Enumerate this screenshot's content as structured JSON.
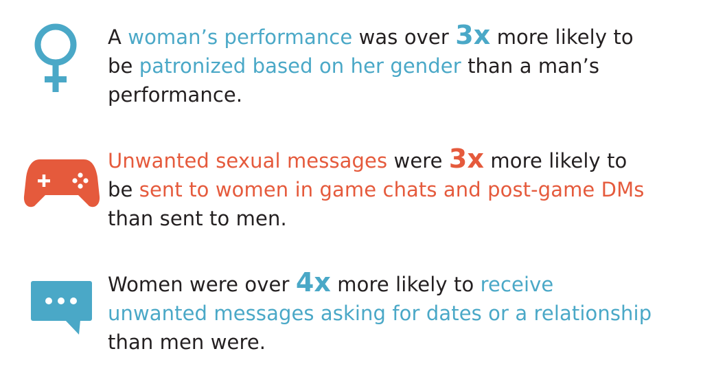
{
  "colors": {
    "blue": "#4aa8c7",
    "orange": "#e55a3c",
    "text": "#231f20"
  },
  "stats": [
    {
      "icon": "female-symbol-icon",
      "lines": [
        {
          "a": "A ",
          "b": "woman’s performance",
          "c": " was over ",
          "d": "3x",
          "e": " more likely to"
        },
        {
          "a": "be ",
          "b": "patronized based on her gender",
          "c": " than a man’s"
        },
        {
          "a": "performance."
        }
      ]
    },
    {
      "icon": "game-controller-icon",
      "lines": [
        {
          "b": "Unwanted sexual messages",
          "c": " were ",
          "d": "3x",
          "e": " more likely to"
        },
        {
          "a": "be ",
          "b": "sent to women in game chats and post-game DMs"
        },
        {
          "a": "than sent to men."
        }
      ]
    },
    {
      "icon": "chat-bubble-icon",
      "lines": [
        {
          "a": "Women were over ",
          "d": "4x",
          "e": " more likely to ",
          "f": "receive"
        },
        {
          "b": "unwanted messages asking for dates or a relationship"
        },
        {
          "a": "than men were."
        }
      ]
    }
  ]
}
